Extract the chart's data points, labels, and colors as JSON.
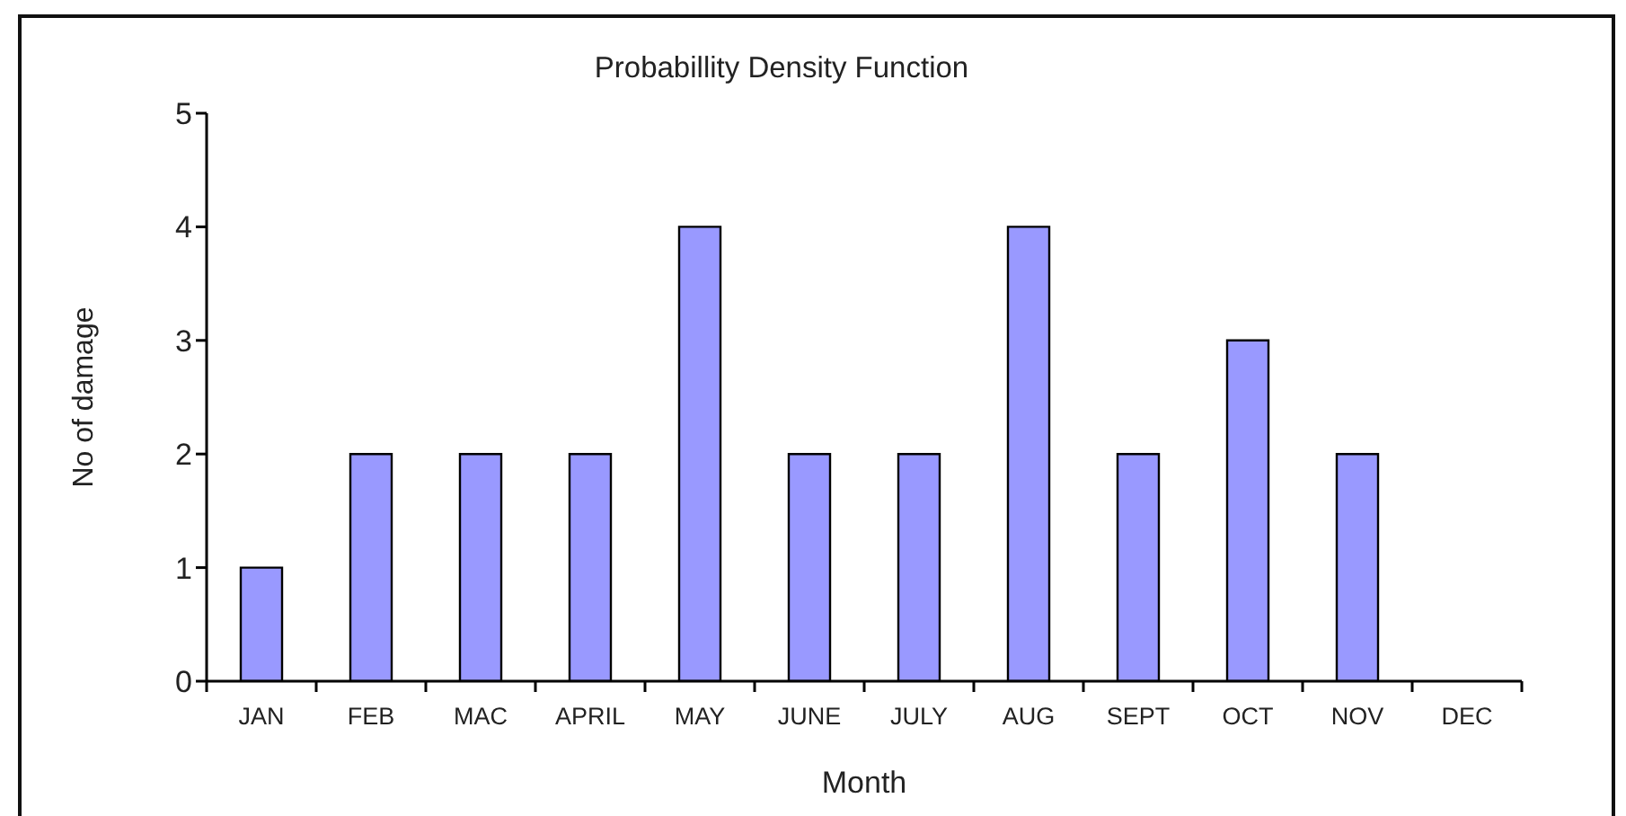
{
  "chart_data": {
    "type": "bar",
    "title": "Probabillity Density Function",
    "xlabel": "Month",
    "ylabel": "No of damage",
    "categories": [
      "JAN",
      "FEB",
      "MAC",
      "APRIL",
      "MAY",
      "JUNE",
      "JULY",
      "AUG",
      "SEPT",
      "OCT",
      "NOV",
      "DEC"
    ],
    "values": [
      1,
      2,
      2,
      2,
      4,
      2,
      2,
      4,
      2,
      3,
      2,
      0
    ],
    "color": "#9999ff",
    "ylim": [
      0,
      5
    ],
    "yticks": [
      0,
      1,
      2,
      3,
      4,
      5
    ]
  }
}
